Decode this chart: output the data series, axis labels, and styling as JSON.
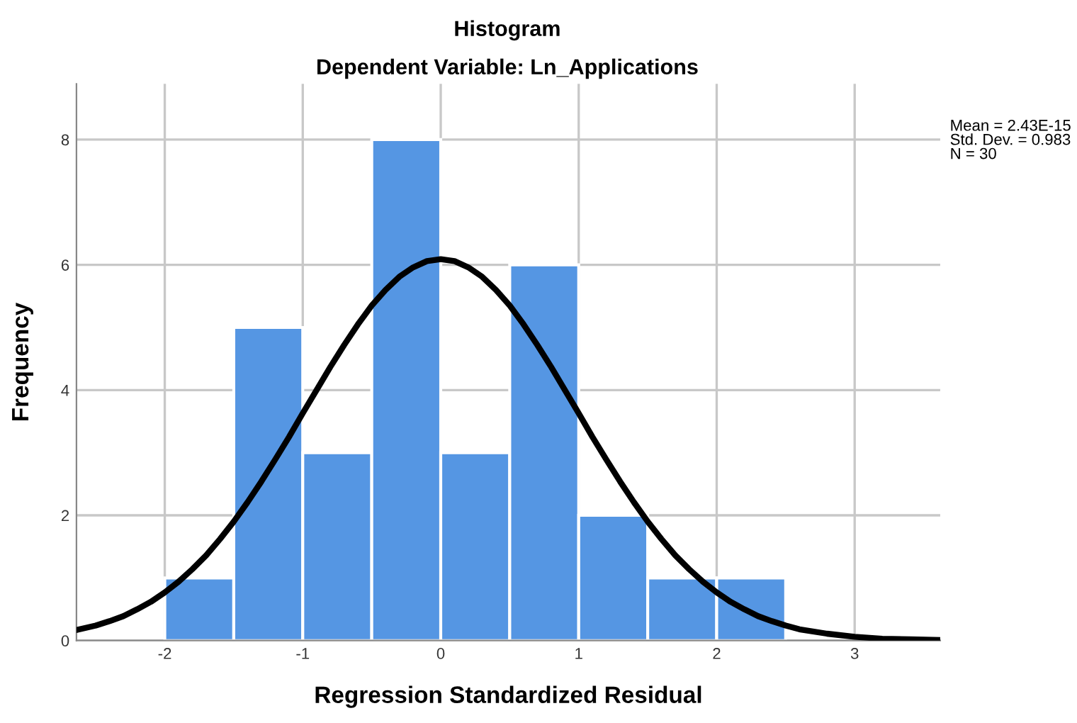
{
  "chart_data": {
    "type": "histogram",
    "title": "Histogram",
    "subtitle": "Dependent Variable: Ln_Applications",
    "xlabel": "Regression Standardized Residual",
    "ylabel": "Frequency",
    "bins": [
      -2,
      -1.5,
      -1,
      -0.5,
      0,
      0.5,
      1,
      1.5,
      2,
      2.5
    ],
    "values": [
      1,
      5,
      3,
      8,
      3,
      6,
      2,
      1,
      1
    ],
    "color": "#5596e3",
    "series": [
      {
        "type": "line",
        "color": "#000000",
        "x": [
          -2.64,
          -2.5,
          -2.4,
          -2.3,
          -2.2,
          -2.1,
          -2.0,
          -1.9,
          -1.8,
          -1.7,
          -1.6,
          -1.5,
          -1.4,
          -1.3,
          -1.2,
          -1.1,
          -1.0,
          -0.9,
          -0.8,
          -0.7,
          -0.6,
          -0.5,
          -0.4,
          -0.3,
          -0.2,
          -0.1,
          0,
          0.1,
          0.2,
          0.3,
          0.4,
          0.5,
          0.6,
          0.7,
          0.8,
          0.9,
          1.0,
          1.1,
          1.2,
          1.3,
          1.4,
          1.5,
          1.6,
          1.7,
          1.8,
          1.9,
          2.0,
          2.1,
          2.2,
          2.3,
          2.4,
          2.5,
          2.6,
          2.8,
          3.0,
          3.2,
          3.4,
          3.62
        ],
        "values": [
          0.17,
          0.24,
          0.31,
          0.39,
          0.5,
          0.62,
          0.77,
          0.94,
          1.14,
          1.36,
          1.62,
          1.9,
          2.21,
          2.54,
          2.89,
          3.25,
          3.63,
          4.0,
          4.37,
          4.72,
          5.05,
          5.35,
          5.6,
          5.81,
          5.96,
          6.06,
          6.09,
          6.06,
          5.96,
          5.81,
          5.6,
          5.35,
          5.05,
          4.72,
          4.37,
          4.0,
          3.63,
          3.25,
          2.89,
          2.54,
          2.21,
          1.9,
          1.62,
          1.36,
          1.14,
          0.94,
          0.77,
          0.62,
          0.5,
          0.39,
          0.31,
          0.24,
          0.18,
          0.11,
          0.06,
          0.03,
          0.02,
          0.01
        ]
      }
    ],
    "annotations": [
      "Mean = 2.43E-15\nStd. Dev. = 0.983\nN = 30"
    ],
    "xlim": [
      -2.64,
      3.62
    ],
    "ylim": [
      0,
      8.89
    ],
    "xticks": [
      -2,
      -1,
      0,
      1,
      2,
      3
    ],
    "yticks": [
      0,
      2,
      4,
      6,
      8
    ],
    "grid": true,
    "legend": false,
    "marker": "none",
    "line_style": "solid"
  }
}
